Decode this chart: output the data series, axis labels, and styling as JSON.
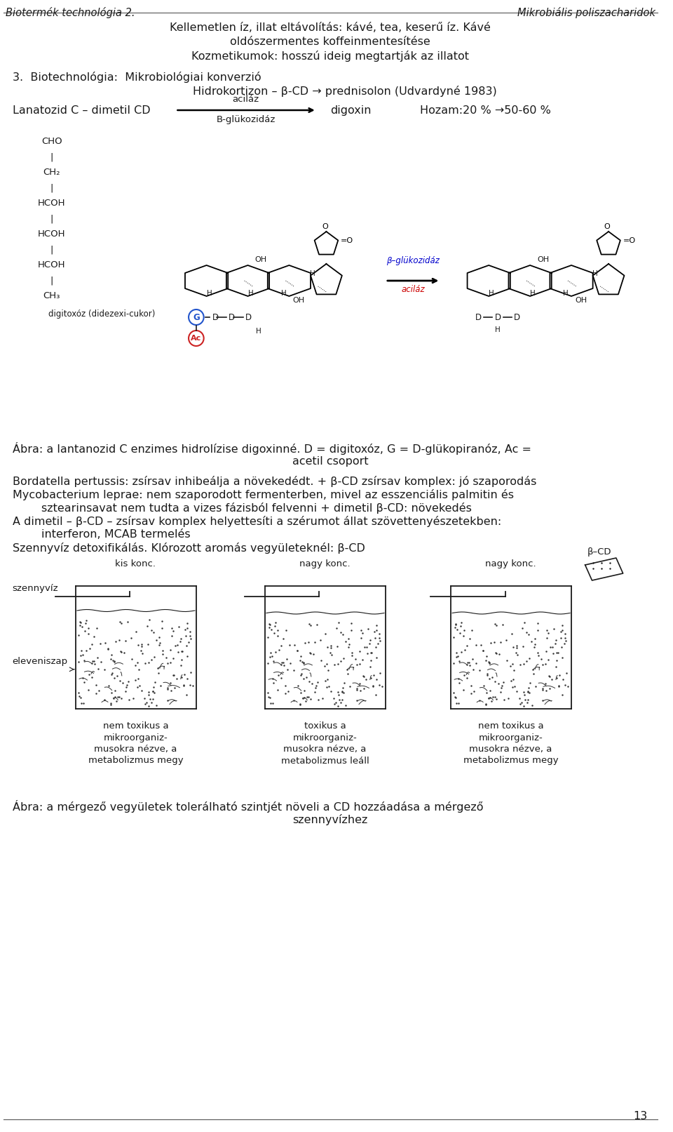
{
  "header_left": "Biotermék technológia 2.",
  "header_right": "Mikrobiális poliszacharidok",
  "page_number": "13",
  "bg_color": "#ffffff",
  "text_color": "#1a1a1a",
  "section1_line1": "Kellemetlen íz, illat eltávolítás: kávé, tea, keserű íz. Kávé",
  "section1_line2": "oldószermentes koffeinmentesítése",
  "section1_line3": "Kozmetikumok: hosszú ideig megtartják az illatot",
  "section2_title": "3.  Biotechnológia:  Mikrobiológiai konverzió",
  "section2_line1": "Hidrokortizon – β-CD → prednisolon (Udvardyné 1983)",
  "section2_line2_left": "Lanatozid C – dimetil CD",
  "section2_line2_arrow_top": "aciláz",
  "section2_line2_arrow_bot": "B-glükozidáz",
  "section2_line2_right": "digoxin",
  "section2_line2_yield": "Hozam:20 % →50-60 %",
  "digitoxoz_label": "digitoxóz (didezexi-cukor)",
  "abra1_line1": "Ábra: a lantanozid C enzimes hidrolízise digoxinné. D = digitoxóz, G = D-glükopiranóz, Ac =",
  "abra1_line2": "acetil csoport",
  "bordatella_line1": "Bordatella pertussis: zsírsav inhibeálja a növekedédt. + β-CD zsírsav komplex: jó szaporodás",
  "bordatella_line2": "Mycobacterium leprae: nem szaporodott fermenterben, mivel az esszenciális palmitin és",
  "bordatella_line3": "        sztearinsavat nem tudta a vizes fázisból felvenni + dimetil β-CD: növekedés",
  "bordatella_line4": "A dimetil – β-CD – zsírsav komplex helyettesíti a szérumot állat szövettenyészetekben:",
  "bordatella_line5": "        interferon, MCAB termelés",
  "bordatella_line6": "Szennyvíz detoxifikálás. Klórozott aromás vegyületeknél: β-CD",
  "szennyviz_label": "szennyvíz",
  "eleveniszap_label": "eleveniszap",
  "kis_konc": "kis konc.",
  "nagy_konc1": "nagy konc.",
  "nagy_konc2": "nagy konc.",
  "beta_cd_label": "β–CD",
  "box1_text": "nem toxikus a\nmikroorganiz-\nmusokra nézve, a\nmetabolizmus megy",
  "box2_text": "toxikus a\nmikroorganiz-\nmusokra nézve, a\nmetabolizmus leáll",
  "box3_text": "nem toxikus a\nmikroorganiz-\nmusokra nézve, a\nmetabolizmus megy",
  "abra2_line1": "Ábra: a mérgező vegyületek tolerálható szintjét növeli a CD hozzáadása a mérgező",
  "abra2_line2": "szennyvízhez"
}
